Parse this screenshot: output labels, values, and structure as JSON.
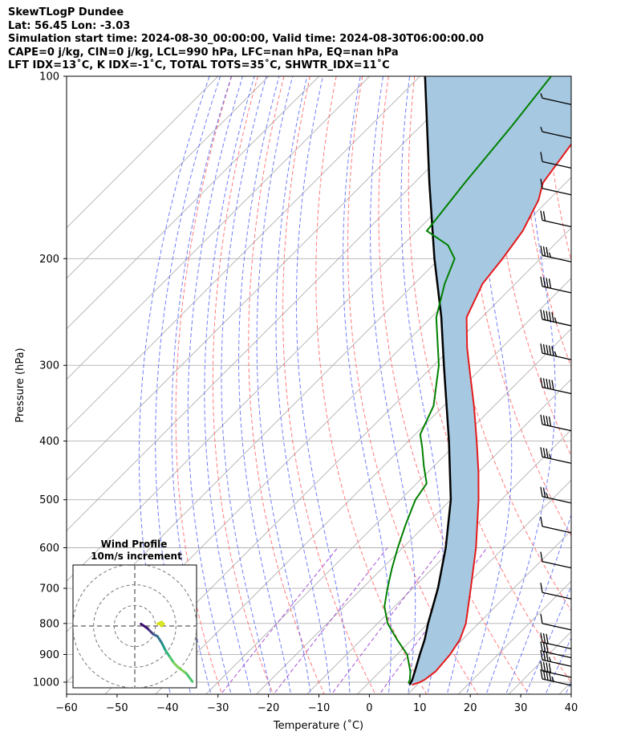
{
  "header": {
    "line1": "SkewTLogP Dundee",
    "line2": "Lat: 56.45   Lon: -3.03",
    "line3": "Simulation start time: 2024-08-30_00:00:00, Valid time: 2024-08-30T06:00:00.00",
    "line4": "CAPE=0 j/kg, CIN=0 j/kg, LCL=990 hPa, LFC=nan hPa, EQ=nan hPa",
    "line5": "LFT IDX=13˚C, K IDX=-1˚C, TOTAL TOTS=35˚C, SHWTR_IDX=11˚C"
  },
  "chart_data": {
    "type": "line",
    "subtype": "skew-t log-p",
    "xlabel": "Temperature (˚C)",
    "ylabel": "Pressure (hPa)",
    "xlim": [
      -60,
      40
    ],
    "ylim": [
      1050,
      100
    ],
    "yscale": "log",
    "grid": true,
    "x_ticks": [
      "−60",
      "−50",
      "−40",
      "−30",
      "−20",
      "−10",
      "0",
      "10",
      "20",
      "30",
      "40"
    ],
    "y_ticks": [
      "100",
      "200",
      "300",
      "400",
      "500",
      "600",
      "700",
      "800",
      "900",
      "1000"
    ],
    "colors": {
      "temperature": "#e41a1c",
      "dewpoint": "#008000",
      "parcel": "#000000",
      "shade": "#a6c8e0",
      "dry_adiabat": "#ff5a5a",
      "moist_adiabat": "#4b5cf5",
      "mixing_ratio": "#9b3ed0",
      "isotherm": "#b0b0b0"
    },
    "series": [
      {
        "key": "temperature",
        "pressure": [
          1010,
          1000,
          990,
          960,
          900,
          850,
          800,
          700,
          600,
          500,
          450,
          400,
          350,
          300,
          280,
          250,
          220,
          200,
          180,
          160,
          150,
          130,
          115,
          100
        ],
        "values": [
          9,
          10,
          10.5,
          11,
          10.5,
          9.5,
          7.5,
          1.5,
          -5.5,
          -14.5,
          -20,
          -26.5,
          -34,
          -43,
          -47,
          -53,
          -56.5,
          -57.5,
          -59,
          -62,
          -64.5,
          -66.5,
          -67,
          -67.5
        ]
      },
      {
        "key": "dewpoint",
        "pressure": [
          1005,
          990,
          960,
          900,
          850,
          800,
          750,
          700,
          650,
          600,
          550,
          500,
          470,
          440,
          410,
          390,
          350,
          300,
          250,
          220,
          200,
          190,
          180,
          150,
          120,
          100
        ],
        "values": [
          8,
          7.5,
          6,
          2,
          -3,
          -8,
          -12,
          -15,
          -18,
          -21,
          -24,
          -27,
          -28,
          -32,
          -36,
          -39,
          -42,
          -49,
          -59,
          -64,
          -67,
          -71,
          -78,
          -80,
          -82,
          -84
        ]
      },
      {
        "key": "parcel",
        "pressure": [
          1010,
          990,
          950,
          900,
          850,
          800,
          700,
          600,
          500,
          400,
          300,
          250,
          200,
          150,
          100
        ],
        "values": [
          8.5,
          8,
          6.5,
          4.5,
          2.5,
          0,
          -5,
          -11.5,
          -20,
          -32,
          -48,
          -58,
          -71,
          -87,
          -109
        ]
      }
    ],
    "wind_barbs": [
      {
        "pressure": 1000,
        "speed_kt": 45
      },
      {
        "pressure": 970,
        "speed_kt": 40
      },
      {
        "pressure": 930,
        "speed_kt": 35
      },
      {
        "pressure": 900,
        "speed_kt": 30
      },
      {
        "pressure": 870,
        "speed_kt": 30
      },
      {
        "pressure": 810,
        "speed_kt": 10
      },
      {
        "pressure": 720,
        "speed_kt": 10
      },
      {
        "pressure": 640,
        "speed_kt": 10
      },
      {
        "pressure": 560,
        "speed_kt": 10
      },
      {
        "pressure": 500,
        "speed_kt": 25
      },
      {
        "pressure": 430,
        "speed_kt": 35
      },
      {
        "pressure": 380,
        "speed_kt": 40
      },
      {
        "pressure": 330,
        "speed_kt": 50
      },
      {
        "pressure": 290,
        "speed_kt": 55
      },
      {
        "pressure": 255,
        "speed_kt": 55
      },
      {
        "pressure": 225,
        "speed_kt": 40
      },
      {
        "pressure": 200,
        "speed_kt": 35
      },
      {
        "pressure": 175,
        "speed_kt": 20
      },
      {
        "pressure": 155,
        "speed_kt": 10
      },
      {
        "pressure": 140,
        "speed_kt": 10
      },
      {
        "pressure": 125,
        "speed_kt": 5
      },
      {
        "pressure": 110,
        "speed_kt": 5
      }
    ],
    "inset": {
      "title_line1": "Wind Profile",
      "title_line2": "10m/s increment",
      "rings": [
        10,
        20,
        30
      ],
      "range": [
        -30,
        30
      ],
      "hodograph": [
        [
          3,
          1
        ],
        [
          6,
          -1
        ],
        [
          7,
          -2
        ],
        [
          9,
          -4
        ],
        [
          11,
          -5
        ],
        [
          13,
          -8
        ],
        [
          14,
          -10
        ],
        [
          15,
          -12
        ],
        [
          17,
          -15
        ],
        [
          19,
          -18
        ],
        [
          21,
          -20
        ],
        [
          25,
          -23
        ],
        [
          28,
          -27
        ]
      ],
      "hodograph_top": [
        [
          11,
          1
        ],
        [
          13,
          2
        ],
        [
          14,
          1
        ],
        [
          13,
          0
        ],
        [
          12,
          1
        ]
      ]
    }
  }
}
